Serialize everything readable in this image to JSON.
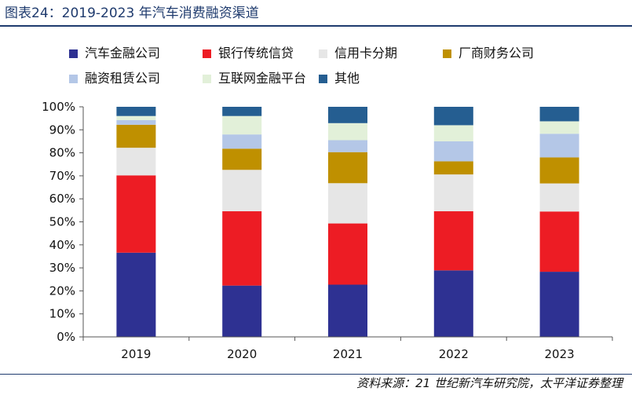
{
  "title": "图表24：2019-2023 年汽车消费融资渠道",
  "source": "资料来源：21 世纪新汽车研究院，太平洋证券整理",
  "chart_data": {
    "type": "bar",
    "stacked": true,
    "categories": [
      "2019",
      "2020",
      "2021",
      "2022",
      "2023"
    ],
    "yticks": [
      "0%",
      "10%",
      "20%",
      "30%",
      "40%",
      "50%",
      "60%",
      "70%",
      "80%",
      "90%",
      "100%"
    ],
    "ylim": [
      0,
      100
    ],
    "grid": false,
    "legend_position": "top",
    "series": [
      {
        "name": "汽车金融公司",
        "color": "#2e3192",
        "values": [
          36.6,
          22.3,
          22.7,
          28.9,
          28.3
        ]
      },
      {
        "name": "银行传统信贷",
        "color": "#ed1c24",
        "values": [
          33.6,
          32.3,
          26.6,
          25.7,
          26.2
        ]
      },
      {
        "name": "信用卡分期",
        "color": "#e6e6e6",
        "values": [
          12.0,
          18.0,
          17.5,
          16.0,
          12.2
        ]
      },
      {
        "name": "厂商财务公司",
        "color": "#bf9000",
        "values": [
          10.0,
          9.2,
          13.5,
          5.7,
          11.3
        ]
      },
      {
        "name": "融资租赁公司",
        "color": "#b4c7e7",
        "values": [
          2.0,
          6.2,
          5.2,
          8.7,
          10.3
        ]
      },
      {
        "name": "互联网金融平台",
        "color": "#e2f0d9",
        "values": [
          1.8,
          8.0,
          7.4,
          7.0,
          5.4
        ]
      },
      {
        "name": "其他",
        "color": "#255e91",
        "values": [
          4.0,
          4.0,
          7.1,
          8.0,
          6.3
        ]
      }
    ]
  }
}
